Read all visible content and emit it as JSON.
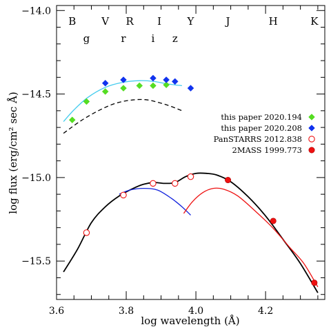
{
  "chart_data": {
    "type": "scatter",
    "title": "",
    "xlabel": "log wavelength (Å)",
    "ylabel": "log flux (erg/cm² sec Å)",
    "xlim": [
      3.6,
      4.37
    ],
    "ylim": [
      -15.73,
      -13.97
    ],
    "x_ticks": [
      3.6,
      3.8,
      4.0,
      4.2
    ],
    "x_tick_labels": [
      "3.6",
      "3.8",
      "4.0",
      "4.2"
    ],
    "y_ticks": [
      -14.0,
      -14.5,
      -15.0,
      -15.5
    ],
    "y_tick_labels": [
      "−14.0",
      "−14.5",
      "−15.0",
      "−15.5"
    ],
    "grid": false,
    "legend_position": "right",
    "band_labels_top": [
      {
        "label": "B",
        "x": 3.645
      },
      {
        "label": "V",
        "x": 3.74
      },
      {
        "label": "R",
        "x": 3.81
      },
      {
        "label": "I",
        "x": 3.895
      },
      {
        "label": "Y",
        "x": 3.985
      },
      {
        "label": "J",
        "x": 4.092
      },
      {
        "label": "H",
        "x": 4.222
      },
      {
        "label": "K",
        "x": 4.34
      }
    ],
    "band_labels_bottom": [
      {
        "label": "g",
        "x": 3.686
      },
      {
        "label": "r",
        "x": 3.792
      },
      {
        "label": "i",
        "x": 3.877
      },
      {
        "label": "z",
        "x": 3.94
      }
    ],
    "series": [
      {
        "name": "this paper 2020.194",
        "marker": "diamond",
        "color": "#55dd22",
        "x": [
          3.645,
          3.686,
          3.74,
          3.792,
          3.838,
          3.877,
          3.915
        ],
        "y": [
          -14.655,
          -14.545,
          -14.485,
          -14.465,
          -14.45,
          -14.45,
          -14.445
        ]
      },
      {
        "name": "this paper 2020.208",
        "marker": "diamond",
        "color": "#1133ee",
        "x": [
          3.74,
          3.792,
          3.877,
          3.915,
          3.94,
          3.985
        ],
        "y": [
          -14.435,
          -14.415,
          -14.405,
          -14.415,
          -14.425,
          -14.465
        ]
      },
      {
        "name": "PanSTARRS 2012.838",
        "marker": "open-circle",
        "color": "#ee1111",
        "x": [
          3.686,
          3.792,
          3.877,
          3.94,
          3.985
        ],
        "y": [
          -15.33,
          -15.105,
          -15.035,
          -15.035,
          -14.995
        ]
      },
      {
        "name": "2MASS 1999.773",
        "marker": "filled-circle",
        "color": "#ee1111",
        "x": [
          4.092,
          4.222,
          4.34
        ],
        "y": [
          -15.015,
          -15.26,
          -15.63
        ]
      }
    ],
    "curves": [
      {
        "style": "solid",
        "color": "#44ccee",
        "x": [
          3.62,
          3.65,
          3.69,
          3.74,
          3.79,
          3.84,
          3.88,
          3.92,
          3.96
        ],
        "y": [
          -14.665,
          -14.595,
          -14.52,
          -14.46,
          -14.43,
          -14.42,
          -14.425,
          -14.44,
          -14.45
        ]
      },
      {
        "style": "dashed",
        "color": "#000000",
        "x": [
          3.62,
          3.67,
          3.72,
          3.77,
          3.82,
          3.86,
          3.9,
          3.93,
          3.96
        ],
        "y": [
          -14.735,
          -14.66,
          -14.6,
          -14.555,
          -14.535,
          -14.535,
          -14.555,
          -14.575,
          -14.6
        ]
      },
      {
        "style": "solid",
        "color": "#000000",
        "x": [
          3.62,
          3.66,
          3.7,
          3.74,
          3.78,
          3.82,
          3.85,
          3.88,
          3.91,
          3.94,
          3.97,
          4.0,
          4.03,
          4.06,
          4.1,
          4.15,
          4.2,
          4.25,
          4.3,
          4.35
        ],
        "y": [
          -15.565,
          -15.43,
          -15.27,
          -15.175,
          -15.11,
          -15.065,
          -15.04,
          -15.03,
          -15.035,
          -15.03,
          -14.995,
          -14.975,
          -14.975,
          -14.985,
          -15.025,
          -15.115,
          -15.23,
          -15.37,
          -15.515,
          -15.69
        ]
      },
      {
        "style": "solid",
        "color": "#1122dd",
        "x": [
          3.78,
          3.81,
          3.85,
          3.89,
          3.93,
          3.96,
          3.985
        ],
        "y": [
          -15.1,
          -15.075,
          -15.065,
          -15.075,
          -15.125,
          -15.175,
          -15.225
        ]
      },
      {
        "style": "solid",
        "color": "#ee1111",
        "x": [
          3.965,
          3.99,
          4.02,
          4.05,
          4.08,
          4.12,
          4.17,
          4.22,
          4.27,
          4.31,
          4.35
        ],
        "y": [
          -15.215,
          -15.145,
          -15.09,
          -15.065,
          -15.07,
          -15.11,
          -15.2,
          -15.3,
          -15.42,
          -15.515,
          -15.655
        ]
      }
    ]
  }
}
